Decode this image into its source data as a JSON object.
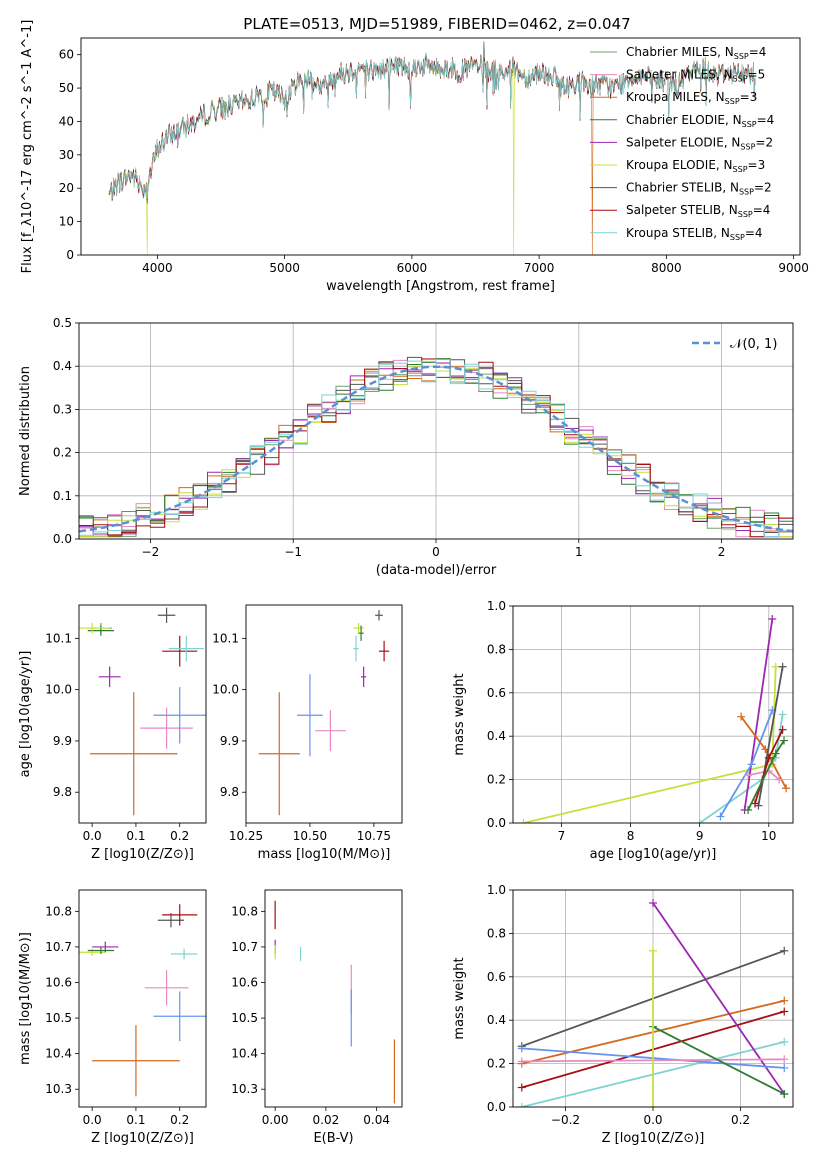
{
  "figure_title": "PLATE=0513, MJD=51989, FIBERID=0462, z=0.047",
  "colors": {
    "chabrier_miles": "#6ca66c",
    "salpeter_miles": "#e78ac3",
    "kroupa_miles": "#d2691e",
    "chabrier_elodie": "#2e7d32",
    "salpeter_elodie": "#9c27b0",
    "kroupa_elodie": "#c6e03c",
    "chabrier_stelib": "#555555",
    "salpeter_stelib": "#a50f15",
    "kroupa_stelib": "#7fd3d3",
    "blue": "#6495ed",
    "normal": "#5b8fd6"
  },
  "chart_data": [
    {
      "id": "spectrum",
      "type": "line",
      "xlabel": "wavelength [Angstrom, rest frame]",
      "ylabel": "Flux [f_λ10^-17 erg cm^-2 s^-1 A^-1]",
      "xlim": [
        3400,
        9050
      ],
      "ylim": [
        0,
        65
      ],
      "xticks": [
        4000,
        5000,
        6000,
        7000,
        8000,
        9000
      ],
      "yticks": [
        0,
        10,
        20,
        30,
        40,
        50,
        60
      ],
      "legend_position": "upper-right",
      "legend": [
        "Chabrier MILES, N_SSP=4",
        "Salpeter MILES, N_SSP=5",
        "Kroupa MILES, N_SSP=3",
        "Chabrier ELODIE, N_SSP=4",
        "Salpeter ELODIE, N_SSP=2",
        "Kroupa ELODIE, N_SSP=3",
        "Chabrier STELIB, N_SSP=2",
        "Salpeter STELIB, N_SSP=4",
        "Kroupa STELIB, N_SSP=4"
      ],
      "envelope": {
        "x": [
          3620,
          3700,
          3800,
          3900,
          3950,
          4000,
          4050,
          4100,
          4200,
          4300,
          4400,
          4500,
          4600,
          4700,
          4800,
          4900,
          5000,
          5100,
          5200,
          5300,
          5400,
          5500,
          5600,
          5700,
          5800,
          5900,
          6000,
          6100,
          6200,
          6300,
          6400,
          6500,
          6600,
          6700,
          6800,
          6900,
          7000,
          7100,
          7200,
          7300,
          7400,
          7500,
          7600,
          7700,
          7800,
          7900,
          8000,
          8100,
          8200,
          8300,
          8400,
          8500,
          8600,
          8700
        ],
        "y": [
          18,
          22,
          24,
          20,
          25,
          32,
          34,
          36,
          38,
          40,
          43,
          44,
          45,
          46,
          48,
          49,
          47,
          52,
          53,
          50,
          54,
          55,
          56,
          55,
          56,
          57,
          56,
          57,
          56,
          56,
          55,
          57,
          55,
          55,
          56,
          53,
          55,
          54,
          50,
          52,
          51,
          51,
          50,
          53,
          54,
          52,
          52,
          51,
          55,
          56,
          54,
          55,
          54,
          55
        ]
      },
      "dropouts": [
        {
          "series": "Kroupa ELODIE",
          "x": 3920
        },
        {
          "series": "Kroupa ELODIE",
          "x": 6800
        },
        {
          "series": "Kroupa MILES",
          "x": 7420
        }
      ],
      "spike": {
        "series": "Chabrier STELIB",
        "x": 6565,
        "y": 64
      }
    },
    {
      "id": "residual_histogram",
      "type": "step",
      "xlabel": "(data-model)/error",
      "ylabel": "Normed distribution",
      "xlim": [
        -2.5,
        2.5
      ],
      "ylim": [
        0,
        0.5
      ],
      "xticks": [
        -2,
        -1,
        0,
        1,
        2
      ],
      "yticks": [
        0.0,
        0.1,
        0.2,
        0.3,
        0.4,
        0.5
      ],
      "bin_width": 0.1,
      "legend": [
        "𝒩(0, 1)"
      ],
      "legend_position": "upper-right",
      "grid": true
    },
    {
      "id": "age_vs_Z",
      "type": "errorbar",
      "xlabel": "Z [log10(Z/Z⊙)]",
      "ylabel": "age  [log10(age/yr)]",
      "xlim": [
        -0.03,
        0.26
      ],
      "ylim": [
        9.74,
        10.165
      ],
      "xticks": [
        0.0,
        0.1,
        0.2
      ],
      "yticks": [
        9.8,
        9.9,
        10.0,
        10.1
      ],
      "points": [
        {
          "series": "Chabrier MILES",
          "x": 0.02,
          "y": 10.12,
          "xerr": 0.025,
          "yerr": 0.01
        },
        {
          "series": "Salpeter MILES",
          "x": 0.17,
          "y": 9.925,
          "xerr": 0.06,
          "yerr": 0.04
        },
        {
          "series": "Kroupa MILES",
          "x": 0.095,
          "y": 9.875,
          "xerr": 0.1,
          "yerr": 0.12
        },
        {
          "series": "Chabrier ELODIE",
          "x": 0.02,
          "y": 10.115,
          "xerr": 0.03,
          "yerr": 0.01
        },
        {
          "series": "Salpeter ELODIE",
          "x": 0.04,
          "y": 10.025,
          "xerr": 0.025,
          "yerr": 0.02
        },
        {
          "series": "Kroupa ELODIE",
          "x": 0.0,
          "y": 10.12,
          "xerr": 0.04,
          "yerr": 0.01
        },
        {
          "series": "Chabrier STELIB",
          "x": 0.17,
          "y": 10.145,
          "xerr": 0.02,
          "yerr": 0.015
        },
        {
          "series": "Salpeter STELIB",
          "x": 0.2,
          "y": 10.075,
          "xerr": 0.04,
          "yerr": 0.03
        },
        {
          "series": "Kroupa STELIB",
          "x": 0.215,
          "y": 10.08,
          "xerr": 0.04,
          "yerr": 0.025
        },
        {
          "series": "blue",
          "x": 0.2,
          "y": 9.95,
          "xerr": 0.06,
          "yerr": 0.055
        }
      ]
    },
    {
      "id": "age_vs_mass",
      "type": "errorbar",
      "xlabel": "mass [log10(M/M⊙)]",
      "xlim": [
        10.25,
        10.86
      ],
      "ylim": [
        9.74,
        10.165
      ],
      "xticks": [
        10.25,
        10.5,
        10.75
      ],
      "yticks": [
        9.8,
        9.9,
        10.0,
        10.1
      ],
      "points": [
        {
          "series": "Kroupa ELODIE",
          "x": 10.69,
          "y": 10.12,
          "xerr": 0.02,
          "yerr": 0.01
        },
        {
          "series": "Chabrier ELODIE",
          "x": 10.7,
          "y": 10.11,
          "xerr": 0.01,
          "yerr": 0.015
        },
        {
          "series": "Chabrier STELIB",
          "x": 10.77,
          "y": 10.145,
          "xerr": 0.015,
          "yerr": 0.01
        },
        {
          "series": "Kroupa STELIB",
          "x": 10.68,
          "y": 10.08,
          "xerr": 0.01,
          "yerr": 0.025
        },
        {
          "series": "Salpeter STELIB",
          "x": 10.79,
          "y": 10.075,
          "xerr": 0.02,
          "yerr": 0.02
        },
        {
          "series": "Salpeter ELODIE",
          "x": 10.71,
          "y": 10.025,
          "xerr": 0.01,
          "yerr": 0.02
        },
        {
          "series": "blue",
          "x": 10.5,
          "y": 9.95,
          "xerr": 0.05,
          "yerr": 0.08
        },
        {
          "series": "Salpeter MILES",
          "x": 10.58,
          "y": 9.92,
          "xerr": 0.06,
          "yerr": 0.04
        },
        {
          "series": "Kroupa MILES",
          "x": 10.38,
          "y": 9.875,
          "xerr": 0.08,
          "yerr": 0.12
        }
      ]
    },
    {
      "id": "mass_weight_vs_age",
      "type": "line",
      "xlabel": "age  [log10(age/yr)]",
      "ylabel": "mass weight",
      "xlim": [
        6.3,
        10.35
      ],
      "ylim": [
        0,
        1.0
      ],
      "xticks": [
        7,
        8,
        9,
        10
      ],
      "yticks": [
        0.0,
        0.2,
        0.4,
        0.6,
        0.8,
        1.0
      ],
      "grid": true,
      "series": [
        {
          "series": "Kroupa ELODIE",
          "x": [
            6.45,
            10.05,
            10.1
          ],
          "y": [
            0.0,
            0.27,
            0.72
          ]
        },
        {
          "series": "Kroupa STELIB",
          "x": [
            9.0,
            9.9,
            10.1,
            10.2
          ],
          "y": [
            0.0,
            0.2,
            0.3,
            0.5
          ]
        },
        {
          "series": "Salpeter ELODIE",
          "x": [
            9.65,
            10.05
          ],
          "y": [
            0.06,
            0.94
          ]
        },
        {
          "series": "blue",
          "x": [
            9.3,
            9.75,
            10.05
          ],
          "y": [
            0.03,
            0.27,
            0.52
          ]
        },
        {
          "series": "Kroupa MILES",
          "x": [
            9.6,
            9.95,
            10.25
          ],
          "y": [
            0.49,
            0.34,
            0.16
          ]
        },
        {
          "series": "Salpeter MILES",
          "x": [
            9.7,
            10.0,
            10.15
          ],
          "y": [
            0.22,
            0.24,
            0.2
          ]
        },
        {
          "series": "Chabrier STELIB",
          "x": [
            9.85,
            10.2
          ],
          "y": [
            0.08,
            0.72
          ]
        },
        {
          "series": "Salpeter STELIB",
          "x": [
            9.8,
            10.0,
            10.2
          ],
          "y": [
            0.09,
            0.3,
            0.43
          ]
        },
        {
          "series": "Chabrier ELODIE",
          "x": [
            9.7,
            10.1,
            10.22
          ],
          "y": [
            0.06,
            0.32,
            0.38
          ]
        }
      ]
    },
    {
      "id": "mass_vs_Z",
      "type": "errorbar",
      "xlabel": "Z [log10(Z/Z⊙)]",
      "ylabel": "mass [log10(M/M⊙)]",
      "xlim": [
        -0.03,
        0.26
      ],
      "ylim": [
        10.25,
        10.86
      ],
      "xticks": [
        0.0,
        0.1,
        0.2
      ],
      "yticks": [
        10.3,
        10.4,
        10.5,
        10.6,
        10.7,
        10.8
      ],
      "points": [
        {
          "series": "Kroupa ELODIE",
          "x": 0.0,
          "y": 10.685,
          "xerr": 0.03,
          "yerr": 0.01
        },
        {
          "series": "Chabrier ELODIE",
          "x": 0.02,
          "y": 10.69,
          "xerr": 0.03,
          "yerr": 0.01
        },
        {
          "series": "Salpeter ELODIE",
          "x": 0.03,
          "y": 10.7,
          "xerr": 0.03,
          "yerr": 0.015
        },
        {
          "series": "Chabrier STELIB",
          "x": 0.18,
          "y": 10.775,
          "xerr": 0.03,
          "yerr": 0.02
        },
        {
          "series": "Salpeter STELIB",
          "x": 0.2,
          "y": 10.79,
          "xerr": 0.04,
          "yerr": 0.03
        },
        {
          "series": "Kroupa STELIB",
          "x": 0.21,
          "y": 10.68,
          "xerr": 0.03,
          "yerr": 0.015
        },
        {
          "series": "Salpeter MILES",
          "x": 0.17,
          "y": 10.585,
          "xerr": 0.05,
          "yerr": 0.05
        },
        {
          "series": "blue",
          "x": 0.2,
          "y": 10.505,
          "xerr": 0.06,
          "yerr": 0.07
        },
        {
          "series": "Kroupa MILES",
          "x": 0.1,
          "y": 10.38,
          "xerr": 0.1,
          "yerr": 0.1
        }
      ]
    },
    {
      "id": "mass_vs_EBV",
      "type": "errorbar",
      "xlabel": "E(B-V)",
      "xlim": [
        -0.004,
        0.05
      ],
      "ylim": [
        10.25,
        10.86
      ],
      "xticks": [
        0.0,
        0.02,
        0.04
      ],
      "yticks": [
        10.3,
        10.4,
        10.5,
        10.6,
        10.7,
        10.8
      ],
      "points": [
        {
          "series": "Salpeter STELIB",
          "x": 0.0,
          "y": 10.79,
          "xerr": 0,
          "yerr": 0.04
        },
        {
          "series": "Salpeter ELODIE",
          "x": 0.0,
          "y": 10.7,
          "xerr": 0,
          "yerr": 0.02
        },
        {
          "series": "Kroupa ELODIE",
          "x": 0.0,
          "y": 10.685,
          "xerr": 0,
          "yerr": 0.02
        },
        {
          "series": "Kroupa STELIB",
          "x": 0.01,
          "y": 10.68,
          "xerr": 0,
          "yerr": 0.02
        },
        {
          "series": "Salpeter MILES",
          "x": 0.03,
          "y": 10.58,
          "xerr": 0,
          "yerr": 0.07
        },
        {
          "series": "blue",
          "x": 0.03,
          "y": 10.5,
          "xerr": 0,
          "yerr": 0.08
        },
        {
          "series": "Kroupa MILES",
          "x": 0.047,
          "y": 10.35,
          "xerr": 0,
          "yerr": 0.09
        }
      ]
    },
    {
      "id": "mass_weight_vs_Z",
      "type": "line",
      "xlabel": "Z [log10(Z/Z⊙)]",
      "ylabel": "mass weight",
      "xlim": [
        -0.32,
        0.32
      ],
      "ylim": [
        0,
        1.0
      ],
      "xticks": [
        -0.2,
        0.0,
        0.2
      ],
      "yticks": [
        0.0,
        0.2,
        0.4,
        0.6,
        0.8,
        1.0
      ],
      "grid": true,
      "series": [
        {
          "series": "Chabrier STELIB",
          "x": [
            -0.3,
            0.3
          ],
          "y": [
            0.28,
            0.72
          ]
        },
        {
          "series": "Kroupa MILES",
          "x": [
            -0.3,
            0.3
          ],
          "y": [
            0.2,
            0.49
          ]
        },
        {
          "series": "Salpeter STELIB",
          "x": [
            -0.3,
            0.3
          ],
          "y": [
            0.09,
            0.44
          ]
        },
        {
          "series": "Kroupa STELIB",
          "x": [
            -0.3,
            0.3
          ],
          "y": [
            0.0,
            0.3
          ]
        },
        {
          "series": "Salpeter ELODIE",
          "x": [
            0.0,
            0.3
          ],
          "y": [
            0.94,
            0.06
          ]
        },
        {
          "series": "blue",
          "x": [
            -0.3,
            0.3
          ],
          "y": [
            0.27,
            0.18
          ]
        },
        {
          "series": "Salpeter MILES",
          "x": [
            -0.3,
            0.3
          ],
          "y": [
            0.21,
            0.22
          ]
        },
        {
          "series": "Chabrier ELODIE",
          "x": [
            0.0,
            0.3
          ],
          "y": [
            0.37,
            0.06
          ]
        },
        {
          "series": "Kroupa ELODIE",
          "x": [
            0.0,
            0.0
          ],
          "y": [
            0.0,
            0.72
          ]
        }
      ]
    }
  ]
}
